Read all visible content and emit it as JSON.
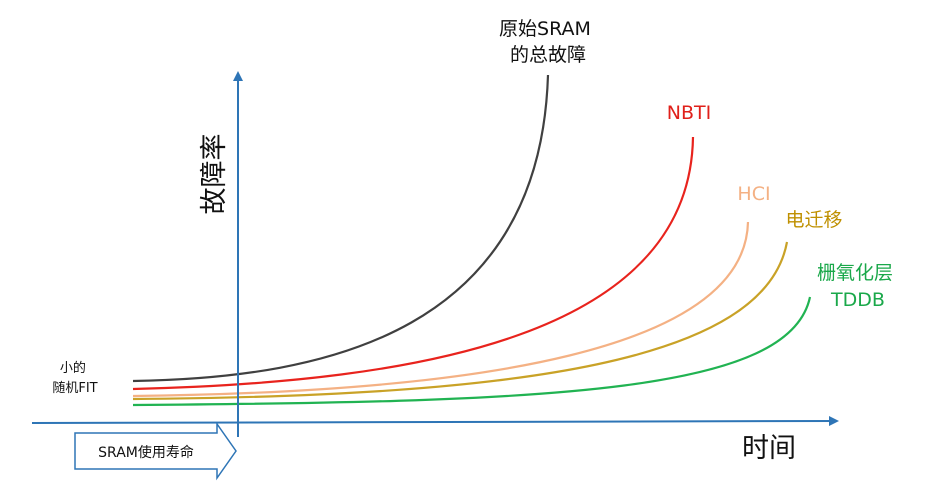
{
  "axes": {
    "y_label": "故障率",
    "x_label": "时间",
    "color": "#2e75b6"
  },
  "curves": [
    {
      "id": "total",
      "label": "原始SRAM\n的总故障",
      "color": "#404040",
      "label_color": "#111111"
    },
    {
      "id": "nbti",
      "label": "NBTI",
      "color": "#e8231d",
      "label_color": "#e0201a"
    },
    {
      "id": "hci",
      "label": "HCI",
      "color": "#f4b184",
      "label_color": "#f4b184"
    },
    {
      "id": "em",
      "label": "电迁移",
      "color": "#c9a227",
      "label_color": "#bf9000"
    },
    {
      "id": "tddb",
      "label": "栅氧化层\nTDDB",
      "color": "#21b352",
      "label_color": "#1aa84a"
    }
  ],
  "baseline_annotation": {
    "line1": "小的",
    "line2": "随机FIT"
  },
  "lifetime_box": {
    "label": "SRAM使用寿命",
    "border_color": "#2e75b6"
  }
}
